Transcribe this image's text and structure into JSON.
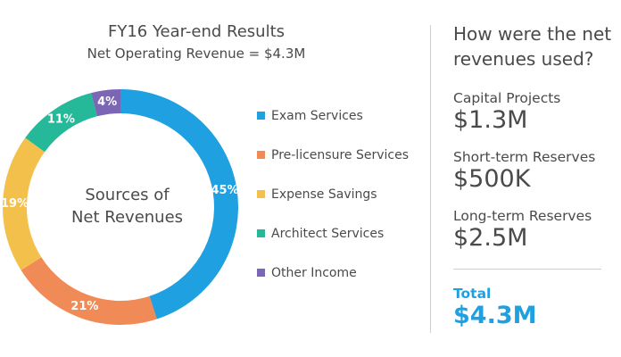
{
  "chart_data": {
    "type": "pie",
    "title": "FY16 Year-end Results",
    "subtitle": "Net Operating  Revenue = $4.3M",
    "center_label": [
      "Sources of",
      "Net Revenues"
    ],
    "categories": [
      "Exam Services",
      "Pre-licensure Services",
      "Expense Savings",
      "Architect Services",
      "Other Income"
    ],
    "values": [
      45,
      21,
      19,
      11,
      4
    ],
    "data_labels": [
      "45%",
      "21%",
      "19%",
      "11%",
      "4%"
    ],
    "colors": [
      "#1fa0e0",
      "#f08a57",
      "#f3c04b",
      "#25b99a",
      "#7b65b5"
    ],
    "legend": "right",
    "donut": true
  },
  "uses": {
    "heading": [
      "How were the net",
      "revenues used?"
    ],
    "items": [
      {
        "label": "Capital Projects",
        "value": "$1.3M"
      },
      {
        "label": "Short-term Reserves",
        "value": "$500K"
      },
      {
        "label": "Long-term Reserves",
        "value": "$2.5M"
      }
    ],
    "total_label": "Total",
    "total_value": "$4.3M",
    "accent_color": "#1fa0e0"
  }
}
